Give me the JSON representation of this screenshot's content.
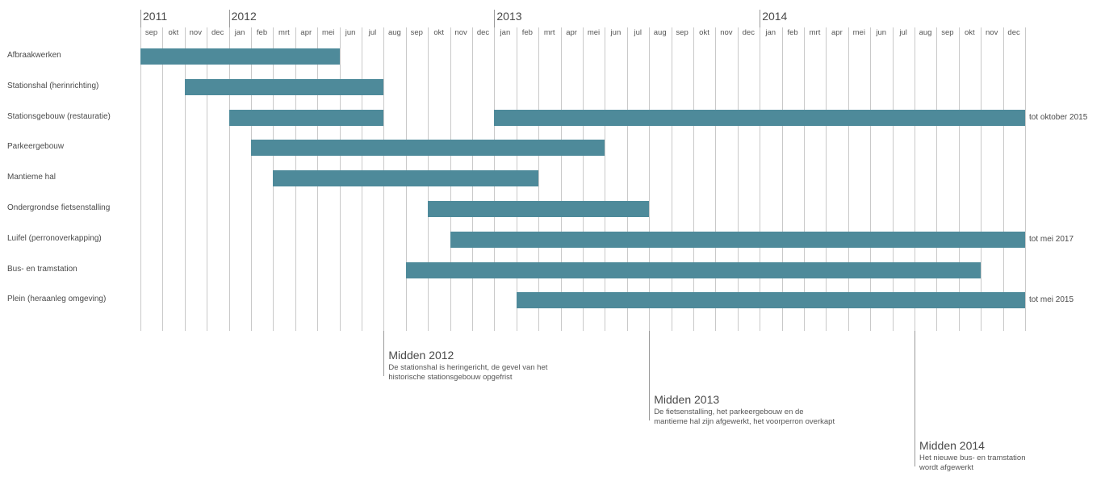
{
  "chart_data": {
    "type": "gantt",
    "years": [
      {
        "label": "2011",
        "start_month": "2011-09"
      },
      {
        "label": "2012",
        "start_month": "2012-01"
      },
      {
        "label": "2013",
        "start_month": "2013-01"
      },
      {
        "label": "2014",
        "start_month": "2014-01"
      }
    ],
    "months": [
      "sep",
      "okt",
      "nov",
      "dec",
      "jan",
      "feb",
      "mrt",
      "apr",
      "mei",
      "jun",
      "jul",
      "aug",
      "sep",
      "okt",
      "nov",
      "dec",
      "jan",
      "feb",
      "mrt",
      "apr",
      "mei",
      "jun",
      "jul",
      "aug",
      "sep",
      "okt",
      "nov",
      "dec",
      "jan",
      "feb",
      "mrt",
      "apr",
      "mei",
      "jun",
      "jul",
      "aug",
      "sep",
      "okt",
      "nov",
      "dec"
    ],
    "first_month": "2011-09",
    "tasks": [
      {
        "label": "Afbraakwerken",
        "start": "2011-09",
        "end": "2012-05",
        "segments": [
          [
            "2011-09",
            "2012-06"
          ]
        ],
        "note": ""
      },
      {
        "label": "Stationshal (herinrichting)",
        "segments": [
          [
            "2011-11",
            "2012-08"
          ]
        ],
        "note": ""
      },
      {
        "label": "Stationsgebouw (restauratie)",
        "segments": [
          [
            "2012-01",
            "2012-08"
          ],
          [
            "2013-01",
            "2015-01"
          ]
        ],
        "note": "tot oktober 2015"
      },
      {
        "label": "Parkeergebouw",
        "segments": [
          [
            "2012-02",
            "2013-06"
          ]
        ],
        "note": ""
      },
      {
        "label": "Mantiemе hal",
        "segments": [
          [
            "2012-03",
            "2013-03"
          ]
        ],
        "note": ""
      },
      {
        "label": "Ondergrondse fietsenstalling",
        "segments": [
          [
            "2012-10",
            "2013-08"
          ]
        ],
        "note": ""
      },
      {
        "label": "Luifel (perronoverkapping)",
        "segments": [
          [
            "2012-11",
            "2015-01"
          ]
        ],
        "note": "tot mei 2017"
      },
      {
        "label": "Bus- en tramstation",
        "segments": [
          [
            "2012-09",
            "2014-11"
          ]
        ],
        "note": ""
      },
      {
        "label": "Plein (heraanleg omgeving)",
        "segments": [
          [
            "2013-02",
            "2015-01"
          ]
        ],
        "note": "tot mei 2015"
      }
    ],
    "milestones": [
      {
        "at": "2012-08",
        "title": "Midden 2012",
        "lines": [
          "De stationshal is heringericht, de gevel van het",
          "historische stationsgebouw opgefrist"
        ]
      },
      {
        "at": "2013-08",
        "title": "Midden 2013",
        "lines": [
          "De fietsenstalling, het parkeergebouw en de",
          "mantieme hal zijn afgewerkt, het voorperron overkapt"
        ]
      },
      {
        "at": "2014-08",
        "title": "Midden 2014",
        "lines": [
          "Het nieuwe bus- en tramstation",
          "wordt afgewerkt"
        ]
      }
    ],
    "colors": {
      "bar": "#4e8a9a",
      "grid": "#c9c9c9",
      "text": "#4a4a4a"
    }
  }
}
